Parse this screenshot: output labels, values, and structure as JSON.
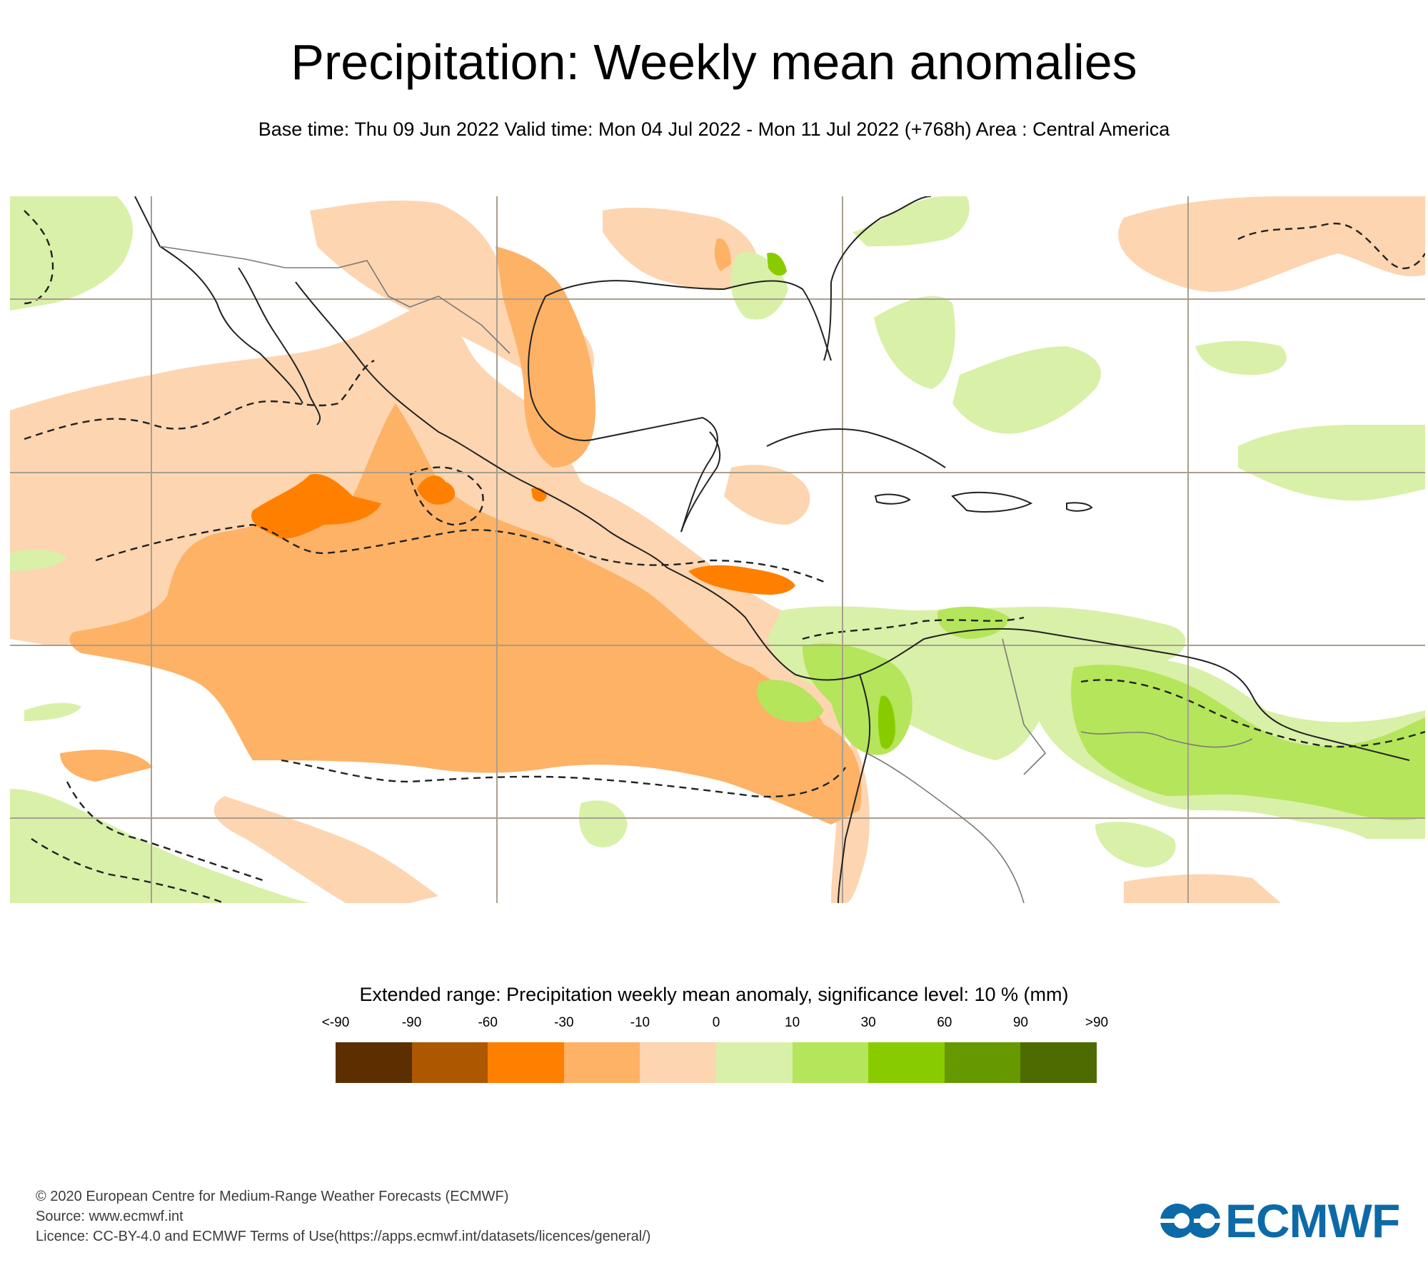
{
  "header": {
    "title": "Precipitation: Weekly mean anomalies",
    "subtitle": "Base time: Thu 09 Jun 2022 Valid time: Mon 04 Jul 2022 - Mon 11 Jul 2022 (+768h) Area : Central America"
  },
  "map": {
    "area": "Central America",
    "colors": {
      "land_outline": "#222222",
      "border_line": "#7a7a7a",
      "grid_line": "#a89f8f",
      "significance_contour": "#222222"
    },
    "regions": [
      {
        "name": "east-pacific-dry-core",
        "category": "-60 to -30",
        "color": "#ff8000"
      },
      {
        "name": "east-pacific-dry-band",
        "category": "-30 to -10",
        "color": "#fdb266"
      },
      {
        "name": "east-pacific-dry-fringe",
        "category": "-10 to 0",
        "color": "#fdd5b1"
      },
      {
        "name": "north-atlantic-dry",
        "category": "-10 to 0",
        "color": "#fdd5b1"
      },
      {
        "name": "south-america-wet",
        "category": "10 to 30",
        "color": "#b5e55b"
      },
      {
        "name": "caribbean-wet",
        "category": "0 to 10",
        "color": "#d9f0a8"
      },
      {
        "name": "central-america-wet",
        "category": "30 to 60",
        "color": "#88cc00"
      },
      {
        "name": "northwest-pacific-wet",
        "category": "0 to 10",
        "color": "#d9f0a8"
      },
      {
        "name": "southwest-pacific-wet",
        "category": "0 to 10",
        "color": "#d9f0a8"
      }
    ]
  },
  "legend": {
    "title": "Extended range: Precipitation weekly mean anomaly, significance level: 10 % (mm)",
    "tick_labels": [
      "<-90",
      "-90",
      "-60",
      "-30",
      "-10",
      "0",
      "10",
      "30",
      "60",
      "90",
      ">90"
    ],
    "swatches": [
      {
        "range": "<-90 to -90",
        "color": "#5c2e00"
      },
      {
        "range": "-90 to -60",
        "color": "#ad5700"
      },
      {
        "range": "-60 to -30",
        "color": "#ff8000"
      },
      {
        "range": "-30 to -10",
        "color": "#fdb266"
      },
      {
        "range": "-10 to 0",
        "color": "#fdd5b1"
      },
      {
        "range": "0 to 10",
        "color": "#d9f0a8"
      },
      {
        "range": "10 to 30",
        "color": "#b5e55b"
      },
      {
        "range": "30 to 60",
        "color": "#88cc00"
      },
      {
        "range": "60 to 90",
        "color": "#669900"
      },
      {
        "range": "90 to >90",
        "color": "#4d6b00"
      }
    ]
  },
  "footer": {
    "copyright": "© 2020 European Centre for Medium-Range Weather Forecasts (ECMWF)",
    "source": "Source: www.ecmwf.int",
    "licence": "Licence: CC-BY-4.0 and ECMWF Terms of Use(https://apps.ecmwf.int/datasets/licences/general/)"
  },
  "logo": {
    "text": "ECMWF",
    "color": "#0d6aa8"
  }
}
